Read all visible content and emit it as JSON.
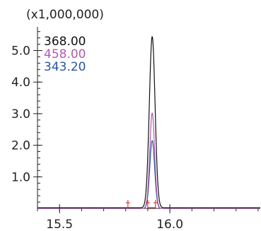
{
  "chart_data": {
    "type": "line",
    "y_multiplier_label": "(x1,000,000)",
    "xlim": [
      15.4,
      16.41
    ],
    "ylim": [
      0,
      5.75
    ],
    "x_ticks": [
      15.5,
      16.0
    ],
    "x_tick_labels": [
      "15.5",
      "16.0"
    ],
    "x_minor_step": 0.1,
    "y_ticks": [
      1.0,
      2.0,
      3.0,
      4.0,
      5.0
    ],
    "y_tick_labels": [
      "1.0",
      "2.0",
      "3.0",
      "4.0",
      "5.0"
    ],
    "y_minor_step": 0.2,
    "grid": false,
    "legend_position": "top-left",
    "series": [
      {
        "name": "368.00",
        "color": "#111111",
        "peak_x": 15.92,
        "peak_height": 5.42,
        "sigma": 0.013,
        "baseline": 0.02
      },
      {
        "name": "458.00",
        "color": "#b05ab0",
        "peak_x": 15.92,
        "peak_height": 3.02,
        "sigma": 0.011,
        "baseline": 0.0
      },
      {
        "name": "343.20",
        "color": "#2a55a5",
        "peak_x": 15.92,
        "peak_height": 2.15,
        "sigma": 0.011,
        "baseline": 0.0
      }
    ],
    "markers": [
      {
        "x": 15.81,
        "color": "#d42020"
      },
      {
        "x": 15.9,
        "color": "#d42020"
      },
      {
        "x": 15.935,
        "color": "#d42020"
      }
    ]
  }
}
